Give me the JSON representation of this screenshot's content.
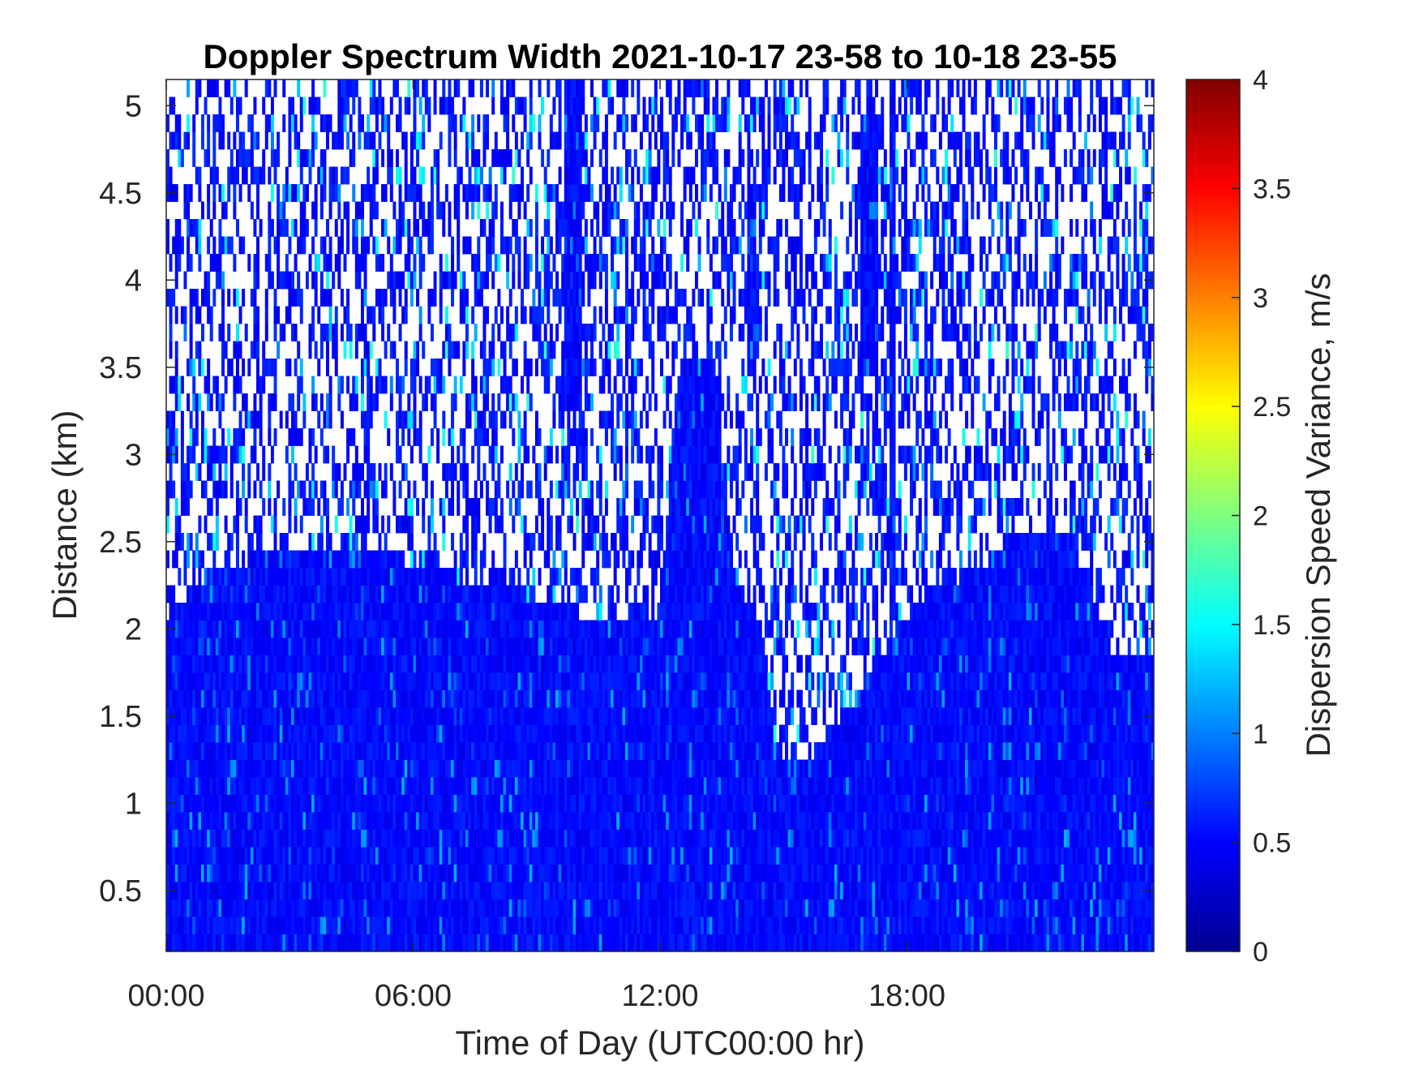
{
  "chart_data": {
    "type": "heatmap",
    "title": "Doppler Spectrum Width 2021-10-17 23-58 to 10-18 23-55",
    "xlabel": "Time of Day (UTC00:00 hr)",
    "ylabel": "Distance (km)",
    "colorbar_label": "Dispersion Speed Variance, m/s",
    "colormap": "jet",
    "xlim_hours": [
      0,
      24
    ],
    "ylim_km": [
      0.15,
      5.15
    ],
    "clim": [
      0,
      4
    ],
    "x_ticks": [
      {
        "value": 0,
        "label": "00:00"
      },
      {
        "value": 6,
        "label": "06:00"
      },
      {
        "value": 12,
        "label": "12:00"
      },
      {
        "value": 18,
        "label": "18:00"
      }
    ],
    "y_ticks": [
      {
        "value": 0.5,
        "label": "0.5"
      },
      {
        "value": 1,
        "label": "1"
      },
      {
        "value": 1.5,
        "label": "1.5"
      },
      {
        "value": 2,
        "label": "2"
      },
      {
        "value": 2.5,
        "label": "2.5"
      },
      {
        "value": 3,
        "label": "3"
      },
      {
        "value": 3.5,
        "label": "3.5"
      },
      {
        "value": 4,
        "label": "4"
      },
      {
        "value": 4.5,
        "label": "4.5"
      },
      {
        "value": 5,
        "label": "5"
      }
    ],
    "colorbar_ticks": [
      {
        "value": 0,
        "label": "0"
      },
      {
        "value": 0.5,
        "label": "0.5"
      },
      {
        "value": 1,
        "label": "1"
      },
      {
        "value": 1.5,
        "label": "1.5"
      },
      {
        "value": 2,
        "label": "2"
      },
      {
        "value": 2.5,
        "label": "2.5"
      },
      {
        "value": 3,
        "label": "3"
      },
      {
        "value": 3.5,
        "label": "3.5"
      },
      {
        "value": 4,
        "label": "4"
      }
    ],
    "dense_layer_top_km": [
      {
        "t": 0.0,
        "top": 2.05
      },
      {
        "t": 0.5,
        "top": 2.2
      },
      {
        "t": 1.0,
        "top": 2.3
      },
      {
        "t": 2.5,
        "top": 2.45
      },
      {
        "t": 4.5,
        "top": 2.5
      },
      {
        "t": 6.0,
        "top": 2.35
      },
      {
        "t": 8.0,
        "top": 2.25
      },
      {
        "t": 10.0,
        "top": 2.1
      },
      {
        "t": 11.5,
        "top": 2.0
      },
      {
        "t": 12.0,
        "top": 2.1
      },
      {
        "t": 12.5,
        "top": 3.55
      },
      {
        "t": 13.3,
        "top": 3.5
      },
      {
        "t": 13.8,
        "top": 2.3
      },
      {
        "t": 14.5,
        "top": 2.0
      },
      {
        "t": 14.8,
        "top": 1.3
      },
      {
        "t": 15.5,
        "top": 1.2
      },
      {
        "t": 16.5,
        "top": 1.5
      },
      {
        "t": 17.5,
        "top": 1.9
      },
      {
        "t": 18.5,
        "top": 2.2
      },
      {
        "t": 20.0,
        "top": 2.4
      },
      {
        "t": 21.0,
        "top": 2.6
      },
      {
        "t": 22.0,
        "top": 2.5
      },
      {
        "t": 23.0,
        "top": 1.85
      },
      {
        "t": 24.0,
        "top": 1.8
      }
    ],
    "vertical_streaks": [
      {
        "t0": 9.7,
        "t1": 10.1,
        "bottom_km": 3.3,
        "top_km": 5.15
      },
      {
        "t0": 14.1,
        "t1": 14.3,
        "bottom_km": 3.5,
        "top_km": 4.6
      },
      {
        "t0": 16.9,
        "t1": 17.3,
        "bottom_km": 3.5,
        "top_km": 4.9
      },
      {
        "t0": 17.6,
        "t1": 17.7,
        "bottom_km": 2.2,
        "top_km": 5.15
      }
    ]
  }
}
